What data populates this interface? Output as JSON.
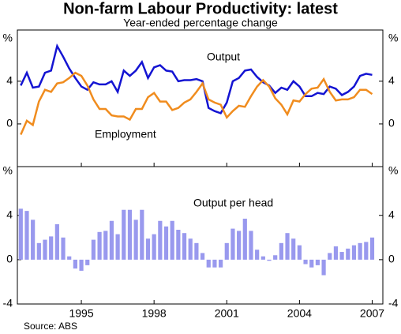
{
  "title": "Non-farm Labour Productivity: latest",
  "subtitle": "Year-ended percentage change",
  "source": "Source: ABS",
  "chart_data": [
    {
      "type": "line",
      "x": [
        1992.5,
        1992.75,
        1993,
        1993.25,
        1993.5,
        1993.75,
        1994,
        1994.25,
        1994.5,
        1994.75,
        1995,
        1995.25,
        1995.5,
        1995.75,
        1996,
        1996.25,
        1996.5,
        1996.75,
        1997,
        1997.25,
        1997.5,
        1997.75,
        1998,
        1998.25,
        1998.5,
        1998.75,
        1999,
        1999.25,
        1999.5,
        1999.75,
        2000,
        2000.25,
        2000.5,
        2000.75,
        2001,
        2001.25,
        2001.5,
        2001.75,
        2002,
        2002.25,
        2002.5,
        2002.75,
        2003,
        2003.25,
        2003.5,
        2003.75,
        2004,
        2004.25,
        2004.5,
        2004.75,
        2005,
        2005.25,
        2005.5,
        2005.75,
        2006,
        2006.25,
        2006.5,
        2006.75,
        2007
      ],
      "series": [
        {
          "name": "Output",
          "color": "#1414d2",
          "values": [
            3.6,
            4.8,
            3.4,
            3.5,
            4.8,
            5.0,
            7.3,
            6.3,
            5.2,
            4.3,
            3.5,
            3.2,
            3.9,
            3.7,
            3.7,
            4.0,
            3.0,
            5.0,
            4.5,
            5.0,
            5.8,
            4.3,
            5.3,
            5.5,
            5.0,
            4.9,
            4.0,
            4.1,
            4.1,
            4.2,
            4.0,
            1.5,
            1.2,
            1.0,
            2.0,
            4.0,
            4.3,
            5.0,
            5.1,
            4.4,
            3.9,
            3.6,
            2.9,
            3.4,
            3.2,
            4.0,
            3.5,
            2.6,
            2.6,
            2.9,
            2.8,
            3.5,
            3.3,
            2.7,
            3.0,
            3.5,
            4.5,
            4.7,
            4.6
          ]
        },
        {
          "name": "Employment",
          "color": "#f08c1e",
          "values": [
            -1.0,
            0.3,
            -0.1,
            2.1,
            3.2,
            3.0,
            3.8,
            3.9,
            4.3,
            4.8,
            4.5,
            3.6,
            2.3,
            1.4,
            1.4,
            0.8,
            0.7,
            0.7,
            0.4,
            1.4,
            1.4,
            2.5,
            2.9,
            2.1,
            2.1,
            1.3,
            1.5,
            2.0,
            2.3,
            3.0,
            3.8,
            2.3,
            2.0,
            1.8,
            0.6,
            1.2,
            1.7,
            1.6,
            2.6,
            3.5,
            4.1,
            3.5,
            2.4,
            1.8,
            0.9,
            2.2,
            2.1,
            2.8,
            3.3,
            3.4,
            4.2,
            3.0,
            2.2,
            2.3,
            2.3,
            2.5,
            3.2,
            3.2,
            2.8
          ]
        }
      ],
      "xlim": [
        1992.36,
        2007.44
      ],
      "xticks": [
        1995,
        1998,
        2001,
        2004,
        2007
      ],
      "ylim": [
        -4,
        8.8
      ],
      "yticks": [
        0,
        4,
        {
          "value": 8,
          "label": "%"
        }
      ]
    },
    {
      "type": "bar",
      "x": [
        1992.5,
        1992.75,
        1993,
        1993.25,
        1993.5,
        1993.75,
        1994,
        1994.25,
        1994.5,
        1994.75,
        1995,
        1995.25,
        1995.5,
        1995.75,
        1996,
        1996.25,
        1996.5,
        1996.75,
        1997,
        1997.25,
        1997.5,
        1997.75,
        1998,
        1998.25,
        1998.5,
        1998.75,
        1999,
        1999.25,
        1999.5,
        1999.75,
        2000,
        2000.25,
        2000.5,
        2000.75,
        2001,
        2001.25,
        2001.5,
        2001.75,
        2002,
        2002.25,
        2002.5,
        2002.75,
        2003,
        2003.25,
        2003.5,
        2003.75,
        2004,
        2004.25,
        2004.5,
        2004.75,
        2005,
        2005.25,
        2005.5,
        2005.75,
        2006,
        2006.25,
        2006.5,
        2006.75,
        2007
      ],
      "series": [
        {
          "name": "Output per head",
          "color": "#9999ee",
          "values": [
            4.6,
            4.4,
            3.6,
            1.5,
            1.8,
            2.1,
            3.2,
            2.0,
            0.3,
            -0.8,
            -1.0,
            -0.5,
            1.8,
            2.5,
            2.6,
            3.5,
            2.3,
            4.5,
            4.5,
            3.6,
            4.5,
            1.9,
            2.3,
            3.5,
            3.0,
            3.5,
            2.7,
            2.4,
            1.9,
            1.5,
            0.6,
            -0.7,
            -0.7,
            -0.7,
            1.5,
            2.8,
            2.6,
            3.7,
            2.6,
            0.9,
            0.3,
            -0.1,
            0.4,
            1.5,
            2.4,
            1.9,
            1.3,
            -0.4,
            -0.7,
            -0.5,
            -1.4,
            0.6,
            1.2,
            0.7,
            1.0,
            1.3,
            1.5,
            1.6,
            2.0
          ]
        }
      ],
      "xlim": [
        1992.36,
        2007.44
      ],
      "xticks": [
        1995,
        1998,
        2001,
        2004,
        2007
      ],
      "ylim": [
        -4,
        8.4
      ],
      "yticks": [
        -4,
        0,
        4,
        {
          "value": 8,
          "label": "%"
        }
      ]
    }
  ]
}
